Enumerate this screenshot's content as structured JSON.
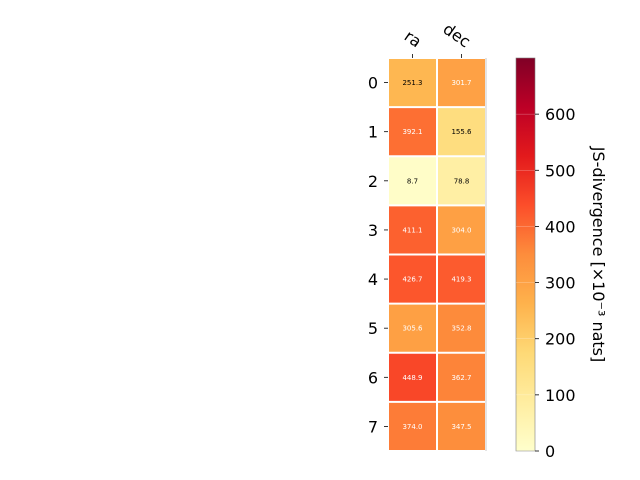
{
  "chart_data": {
    "type": "heatmap",
    "columns": [
      "ra",
      "dec"
    ],
    "rows": [
      "0",
      "1",
      "2",
      "3",
      "4",
      "5",
      "6",
      "7"
    ],
    "values": [
      [
        251.3,
        301.7
      ],
      [
        392.1,
        155.6
      ],
      [
        8.7,
        78.8
      ],
      [
        411.1,
        304.0
      ],
      [
        426.7,
        419.3
      ],
      [
        305.6,
        352.8
      ],
      [
        448.9,
        362.7
      ],
      [
        374.0,
        347.5
      ]
    ],
    "cell_labels": [
      [
        "251.3",
        "301.7"
      ],
      [
        "392.1",
        "155.6"
      ],
      [
        "8.7",
        "78.8"
      ],
      [
        "411.1",
        "304.0"
      ],
      [
        "426.7",
        "419.3"
      ],
      [
        "305.6",
        "352.8"
      ],
      [
        "448.9",
        "362.7"
      ],
      [
        "374.0",
        "347.5"
      ]
    ],
    "colormap": "YlOrRd",
    "color_range": [
      0,
      700
    ],
    "colorbar": {
      "label": "JS-divergence [×10⁻³ nats]",
      "ticks": [
        "0",
        "100",
        "200",
        "300",
        "400",
        "500",
        "600"
      ],
      "tick_values": [
        0,
        100,
        200,
        300,
        400,
        500,
        600
      ]
    },
    "x_tick_position": "top",
    "grid": false
  }
}
